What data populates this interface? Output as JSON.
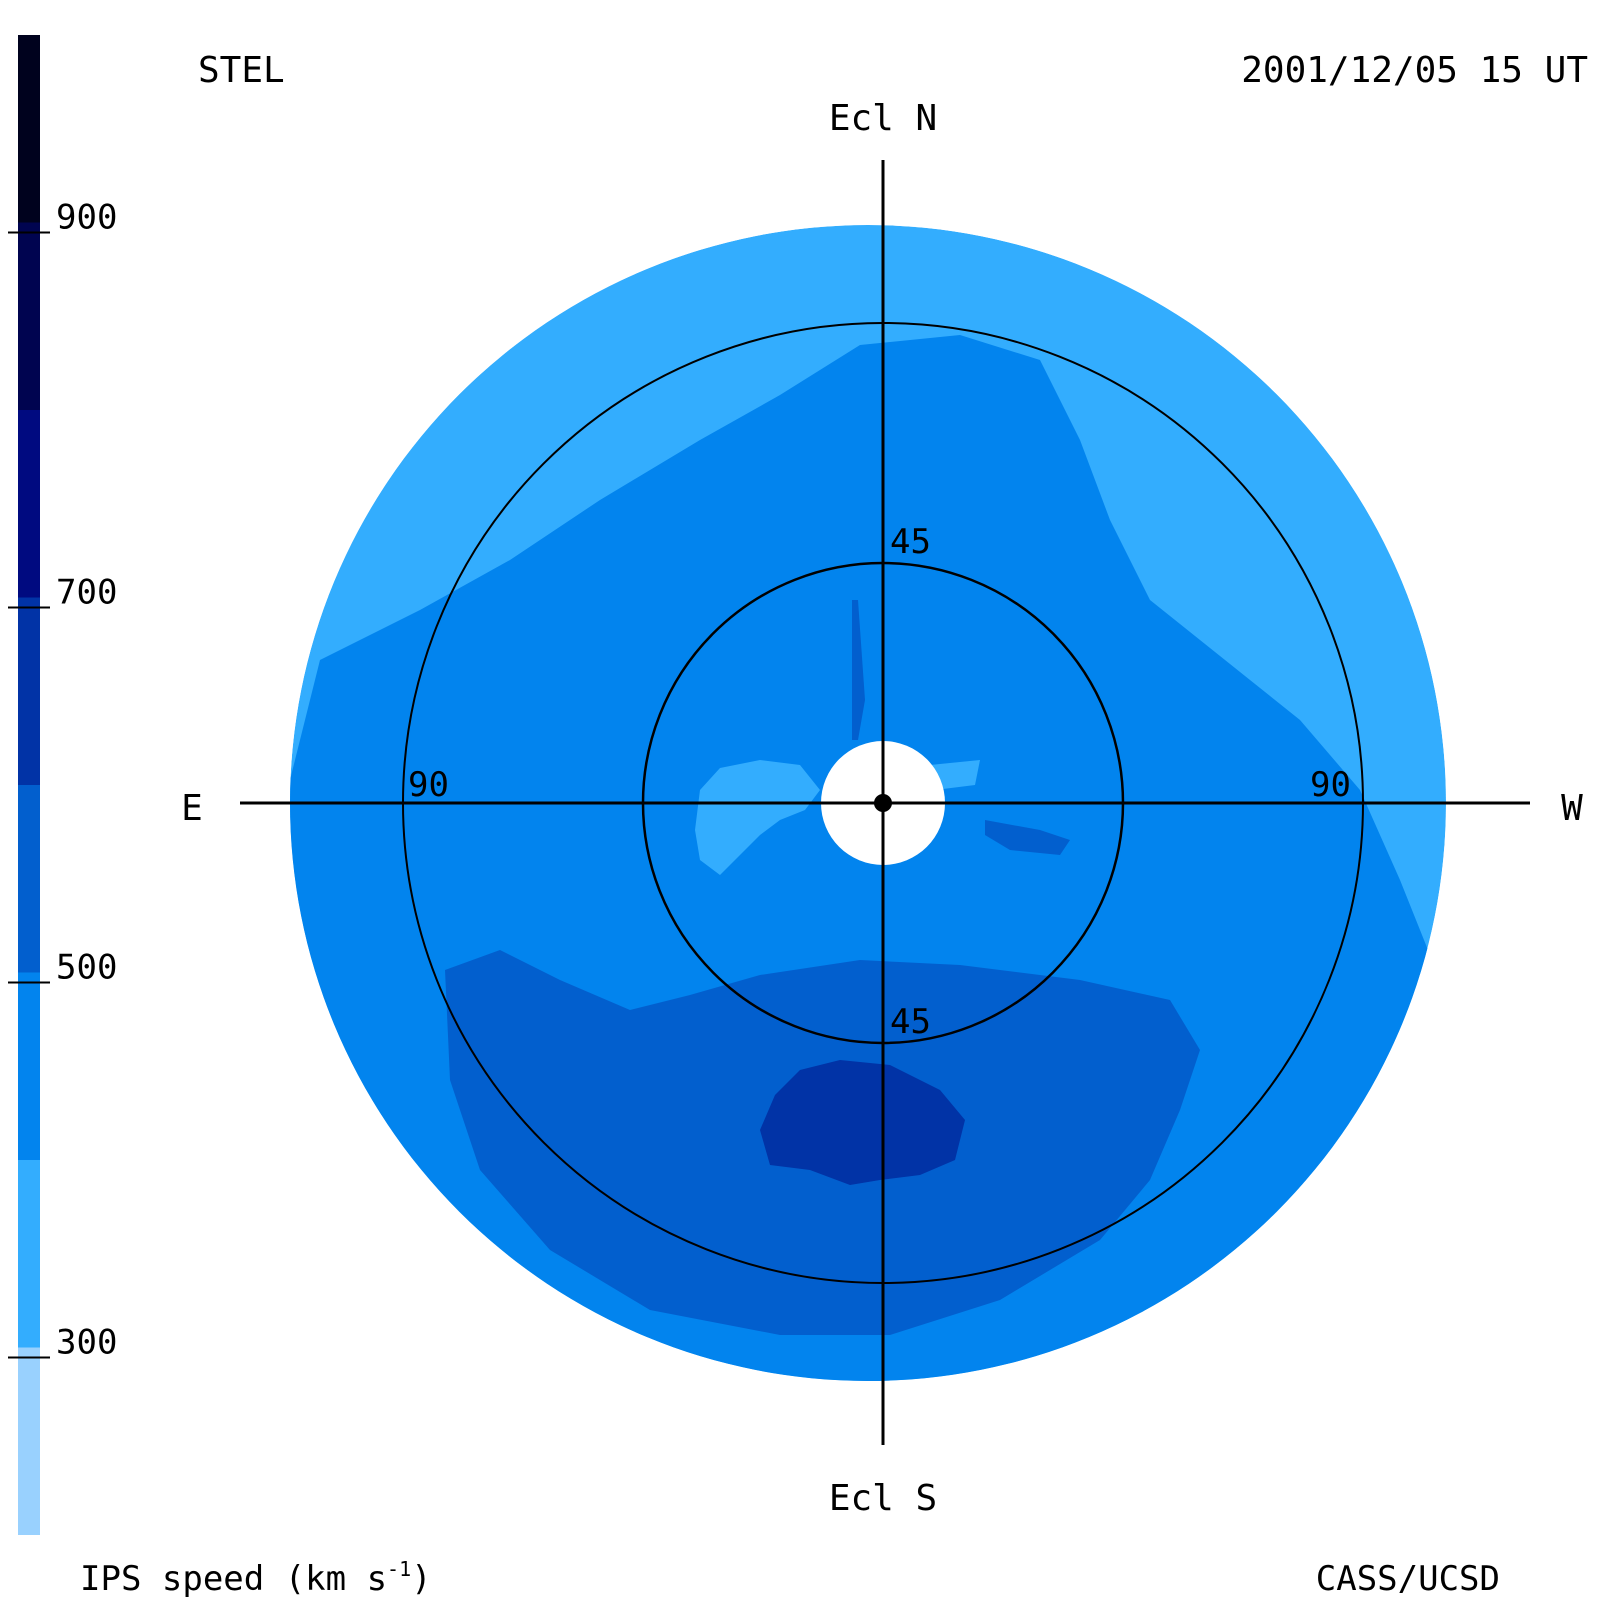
{
  "header": {
    "observatory": "STEL",
    "datetime": "2001/12/05 15 UT"
  },
  "footer": {
    "credit": "CASS/UCSD"
  },
  "directions": {
    "north": "Ecl N",
    "south": "Ecl S",
    "east": "E",
    "west": "W"
  },
  "colorbar": {
    "label_main": "IPS speed (km s",
    "label_sup": "-1",
    "label_close": ")",
    "ticks": [
      900,
      700,
      500,
      300
    ],
    "min": 200,
    "max": 1000,
    "bands": [
      {
        "from": 200,
        "to": 300,
        "color": "#99d1fe"
      },
      {
        "from": 300,
        "to": 400,
        "color": "#33adfe"
      },
      {
        "from": 400,
        "to": 500,
        "color": "#0284ee"
      },
      {
        "from": 500,
        "to": 600,
        "color": "#025fce"
      },
      {
        "from": 600,
        "to": 700,
        "color": "#0133a6"
      },
      {
        "from": 700,
        "to": 800,
        "color": "#000a80"
      },
      {
        "from": 800,
        "to": 900,
        "color": "#000450"
      },
      {
        "from": 900,
        "to": 1000,
        "color": "#00021e"
      }
    ]
  },
  "chart_data": {
    "type": "heatmap",
    "projection": "fisheye sky map of elongation from the Sun",
    "elongation_rings_deg": [
      45,
      90
    ],
    "ring_labels": {
      "north_45": "45",
      "south_45": "45",
      "east_90": "90",
      "west_90": "90"
    },
    "max_elongation_deg": 120,
    "sun_occulted_deg": 12,
    "regions": [
      {
        "name": "outer",
        "speed_band": "300-400",
        "color": "#33adfe"
      },
      {
        "name": "main",
        "speed_band": "400-500",
        "color": "#0284ee"
      },
      {
        "name": "southern-high-speed",
        "speed_band": "500-600",
        "color": "#025fce"
      },
      {
        "name": "southern-core",
        "speed_band": "600-700",
        "color": "#0133a6"
      },
      {
        "name": "near-sun-slow",
        "speed_band": "300-400",
        "color": "#33adfe"
      }
    ]
  }
}
